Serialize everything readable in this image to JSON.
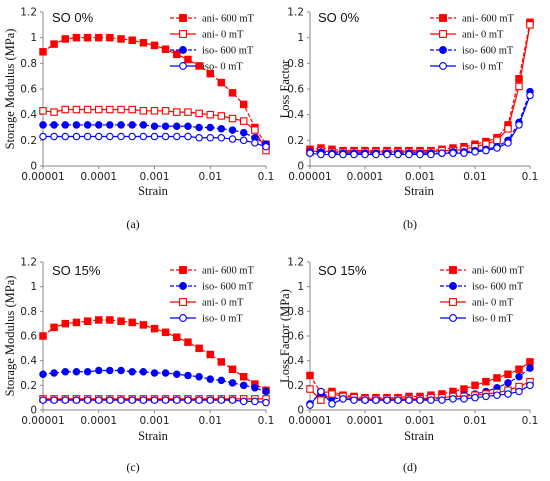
{
  "colors": {
    "red": "#ff0000",
    "blue": "#0000ff",
    "axis": "#888888"
  },
  "chart_data": [
    {
      "id": "a",
      "type": "line",
      "caption": "(a)",
      "annotation": "SO 0%",
      "xlabel": "Strain",
      "ylabel": "Storage Modulus (MPa)",
      "xscale": "log",
      "xlim": [
        1e-05,
        0.1
      ],
      "ylim": [
        0,
        1.2
      ],
      "xticks": [
        {
          "v": 1e-05,
          "label": "0.00001"
        },
        {
          "v": 0.0001,
          "label": "0.0001"
        },
        {
          "v": 0.001,
          "label": "0.001"
        },
        {
          "v": 0.01,
          "label": "0.01"
        },
        {
          "v": 0.1,
          "label": "0.1"
        }
      ],
      "yticks": [
        {
          "v": 0,
          "label": "0"
        },
        {
          "v": 0.2,
          "label": "0.2"
        },
        {
          "v": 0.4,
          "label": "0.4"
        },
        {
          "v": 0.6,
          "label": "0.6"
        },
        {
          "v": 0.8,
          "label": "0.8"
        },
        {
          "v": 1,
          "label": "1"
        },
        {
          "v": 1.2,
          "label": "1.2"
        }
      ],
      "legend_position": "top-right",
      "x": [
        1e-05,
        1.58e-05,
        2.51e-05,
        3.98e-05,
        6.31e-05,
        0.0001,
        0.000158,
        0.000251,
        0.000398,
        0.000631,
        0.001,
        0.00158,
        0.00251,
        0.00398,
        0.00631,
        0.01,
        0.0158,
        0.0251,
        0.0398,
        0.0631,
        0.1
      ],
      "series": [
        {
          "name": "ani- 600 mT",
          "color": "#ff0000",
          "marker": "square",
          "filled": true,
          "dashed": true,
          "values": [
            0.89,
            0.95,
            0.99,
            1.0,
            1.0,
            1.0,
            1.0,
            0.99,
            0.98,
            0.96,
            0.94,
            0.91,
            0.87,
            0.83,
            0.78,
            0.72,
            0.65,
            0.57,
            0.48,
            0.3,
            0.17
          ]
        },
        {
          "name": "ani- 0 mT",
          "color": "#ff0000",
          "marker": "square",
          "filled": false,
          "dashed": false,
          "values": [
            0.43,
            0.42,
            0.44,
            0.44,
            0.44,
            0.44,
            0.44,
            0.44,
            0.44,
            0.43,
            0.43,
            0.43,
            0.42,
            0.42,
            0.41,
            0.4,
            0.39,
            0.37,
            0.35,
            0.28,
            0.12
          ]
        },
        {
          "name": "iso- 600 mT",
          "color": "#0000ff",
          "marker": "circle",
          "filled": true,
          "dashed": true,
          "values": [
            0.32,
            0.32,
            0.32,
            0.32,
            0.32,
            0.32,
            0.32,
            0.32,
            0.32,
            0.32,
            0.31,
            0.31,
            0.31,
            0.31,
            0.3,
            0.3,
            0.29,
            0.28,
            0.26,
            0.22,
            0.17
          ]
        },
        {
          "name": "iso- 0 mT",
          "color": "#0000ff",
          "marker": "circle",
          "filled": false,
          "dashed": false,
          "values": [
            0.23,
            0.23,
            0.23,
            0.23,
            0.23,
            0.23,
            0.23,
            0.23,
            0.23,
            0.23,
            0.23,
            0.23,
            0.23,
            0.23,
            0.22,
            0.22,
            0.22,
            0.21,
            0.2,
            0.18,
            0.15
          ]
        }
      ]
    },
    {
      "id": "b",
      "type": "line",
      "caption": "(b)",
      "annotation": "SO 0%",
      "xlabel": "Strain",
      "ylabel": "Loss Factor",
      "xscale": "log",
      "xlim": [
        1e-05,
        0.1
      ],
      "ylim": [
        0,
        1.2
      ],
      "xticks": [
        {
          "v": 1e-05,
          "label": "0.00001"
        },
        {
          "v": 0.0001,
          "label": "0.0001"
        },
        {
          "v": 0.001,
          "label": "0.001"
        },
        {
          "v": 0.01,
          "label": "0.01"
        },
        {
          "v": 0.1,
          "label": "0.1"
        }
      ],
      "yticks": [
        {
          "v": 0,
          "label": "0"
        },
        {
          "v": 0.2,
          "label": "0.2"
        },
        {
          "v": 0.4,
          "label": "0.4"
        },
        {
          "v": 0.6,
          "label": "0.6"
        },
        {
          "v": 0.8,
          "label": "0.8"
        },
        {
          "v": 1,
          "label": "1"
        },
        {
          "v": 1.2,
          "label": "1.2"
        }
      ],
      "legend_position": "top-right",
      "x": [
        1e-05,
        1.58e-05,
        2.51e-05,
        3.98e-05,
        6.31e-05,
        0.0001,
        0.000158,
        0.000251,
        0.000398,
        0.000631,
        0.001,
        0.00158,
        0.00251,
        0.00398,
        0.00631,
        0.01,
        0.0158,
        0.0251,
        0.0398,
        0.0631,
        0.1
      ],
      "series": [
        {
          "name": "ani- 600 mT",
          "color": "#ff0000",
          "marker": "square",
          "filled": true,
          "dashed": true,
          "values": [
            0.13,
            0.14,
            0.13,
            0.12,
            0.12,
            0.12,
            0.12,
            0.12,
            0.12,
            0.12,
            0.12,
            0.12,
            0.13,
            0.14,
            0.15,
            0.17,
            0.19,
            0.22,
            0.32,
            0.68,
            1.12
          ]
        },
        {
          "name": "ani- 0 mT",
          "color": "#ff0000",
          "marker": "square",
          "filled": false,
          "dashed": false,
          "values": [
            0.11,
            0.12,
            0.11,
            0.11,
            0.11,
            0.11,
            0.11,
            0.11,
            0.11,
            0.11,
            0.11,
            0.11,
            0.12,
            0.12,
            0.13,
            0.15,
            0.17,
            0.2,
            0.29,
            0.62,
            1.1
          ]
        },
        {
          "name": "iso- 600 mT",
          "color": "#0000ff",
          "marker": "circle",
          "filled": true,
          "dashed": true,
          "values": [
            0.11,
            0.11,
            0.1,
            0.1,
            0.1,
            0.1,
            0.1,
            0.1,
            0.1,
            0.1,
            0.1,
            0.1,
            0.1,
            0.11,
            0.11,
            0.12,
            0.13,
            0.15,
            0.2,
            0.34,
            0.58
          ]
        },
        {
          "name": "iso- 0 mT",
          "color": "#0000ff",
          "marker": "circle",
          "filled": false,
          "dashed": false,
          "values": [
            0.1,
            0.09,
            0.09,
            0.09,
            0.09,
            0.09,
            0.09,
            0.09,
            0.09,
            0.09,
            0.09,
            0.09,
            0.1,
            0.1,
            0.1,
            0.11,
            0.12,
            0.14,
            0.18,
            0.32,
            0.55
          ]
        }
      ]
    },
    {
      "id": "c",
      "type": "line",
      "caption": "(c)",
      "annotation": "SO 15%",
      "xlabel": "Strain",
      "ylabel": "Storage Modulus (MPa)",
      "xscale": "log",
      "xlim": [
        1e-05,
        0.1
      ],
      "ylim": [
        0,
        1.2
      ],
      "xticks": [
        {
          "v": 1e-05,
          "label": "0.00001"
        },
        {
          "v": 0.0001,
          "label": "0.0001"
        },
        {
          "v": 0.001,
          "label": "0.001"
        },
        {
          "v": 0.01,
          "label": "0.01"
        },
        {
          "v": 0.1,
          "label": "0.1"
        }
      ],
      "yticks": [
        {
          "v": 0,
          "label": "0"
        },
        {
          "v": 0.2,
          "label": "0.2"
        },
        {
          "v": 0.4,
          "label": "0.4"
        },
        {
          "v": 0.6,
          "label": "0.6"
        },
        {
          "v": 0.8,
          "label": "0.8"
        },
        {
          "v": 1,
          "label": "1"
        },
        {
          "v": 1.2,
          "label": "1.2"
        }
      ],
      "legend_position": "top-right",
      "x": [
        1e-05,
        1.58e-05,
        2.51e-05,
        3.98e-05,
        6.31e-05,
        0.0001,
        0.000158,
        0.000251,
        0.000398,
        0.000631,
        0.001,
        0.00158,
        0.00251,
        0.00398,
        0.00631,
        0.01,
        0.0158,
        0.0251,
        0.0398,
        0.0631,
        0.1
      ],
      "series": [
        {
          "name": "ani- 600 mT",
          "color": "#ff0000",
          "marker": "square",
          "filled": true,
          "dashed": true,
          "values": [
            0.6,
            0.67,
            0.7,
            0.71,
            0.72,
            0.73,
            0.73,
            0.72,
            0.71,
            0.69,
            0.66,
            0.63,
            0.59,
            0.55,
            0.5,
            0.45,
            0.39,
            0.33,
            0.27,
            0.21,
            0.16
          ]
        },
        {
          "name": "iso- 600 mT",
          "color": "#0000ff",
          "marker": "circle",
          "filled": true,
          "dashed": true,
          "values": [
            0.29,
            0.3,
            0.31,
            0.31,
            0.31,
            0.32,
            0.32,
            0.32,
            0.31,
            0.31,
            0.3,
            0.3,
            0.29,
            0.28,
            0.27,
            0.25,
            0.24,
            0.22,
            0.2,
            0.18,
            0.15
          ]
        },
        {
          "name": "ani- 0 mT",
          "color": "#ff0000",
          "marker": "square",
          "filled": false,
          "dashed": false,
          "values": [
            0.09,
            0.09,
            0.09,
            0.09,
            0.09,
            0.09,
            0.09,
            0.09,
            0.09,
            0.09,
            0.09,
            0.09,
            0.09,
            0.09,
            0.09,
            0.09,
            0.09,
            0.09,
            0.09,
            0.09,
            0.09
          ]
        },
        {
          "name": "iso- 0 mT",
          "color": "#0000ff",
          "marker": "circle",
          "filled": false,
          "dashed": false,
          "values": [
            0.08,
            0.08,
            0.08,
            0.08,
            0.08,
            0.08,
            0.08,
            0.08,
            0.08,
            0.08,
            0.08,
            0.08,
            0.08,
            0.08,
            0.08,
            0.08,
            0.08,
            0.08,
            0.07,
            0.07,
            0.06
          ]
        }
      ]
    },
    {
      "id": "d",
      "type": "line",
      "caption": "(d)",
      "annotation": "SO 15%",
      "xlabel": "Strain",
      "ylabel": "Loss Factor (MPa)",
      "xscale": "log",
      "xlim": [
        1e-05,
        0.1
      ],
      "ylim": [
        0,
        1.2
      ],
      "xticks": [
        {
          "v": 1e-05,
          "label": "0.00001"
        },
        {
          "v": 0.0001,
          "label": "0.0001"
        },
        {
          "v": 0.001,
          "label": "0.001"
        },
        {
          "v": 0.01,
          "label": "0.01"
        },
        {
          "v": 0.1,
          "label": "0.1"
        }
      ],
      "yticks": [
        {
          "v": 0,
          "label": "0"
        },
        {
          "v": 0.2,
          "label": "0.2"
        },
        {
          "v": 0.4,
          "label": "0.4"
        },
        {
          "v": 0.6,
          "label": "0.6"
        },
        {
          "v": 0.8,
          "label": "0.8"
        },
        {
          "v": 1,
          "label": "1"
        },
        {
          "v": 1.2,
          "label": "1.2"
        }
      ],
      "legend_position": "top-right",
      "x": [
        1e-05,
        1.58e-05,
        2.51e-05,
        3.98e-05,
        6.31e-05,
        0.0001,
        0.000158,
        0.000251,
        0.000398,
        0.000631,
        0.001,
        0.00158,
        0.00251,
        0.00398,
        0.00631,
        0.01,
        0.0158,
        0.0251,
        0.0398,
        0.0631,
        0.1
      ],
      "series": [
        {
          "name": "ani- 600 mT",
          "color": "#ff0000",
          "marker": "square",
          "filled": true,
          "dashed": true,
          "values": [
            0.28,
            0.14,
            0.15,
            0.12,
            0.11,
            0.1,
            0.1,
            0.1,
            0.1,
            0.11,
            0.11,
            0.12,
            0.13,
            0.15,
            0.17,
            0.2,
            0.23,
            0.26,
            0.29,
            0.33,
            0.39
          ]
        },
        {
          "name": "iso- 600 mT",
          "color": "#0000ff",
          "marker": "circle",
          "filled": true,
          "dashed": true,
          "values": [
            0.05,
            0.14,
            0.1,
            0.09,
            0.09,
            0.08,
            0.08,
            0.08,
            0.08,
            0.08,
            0.09,
            0.09,
            0.1,
            0.11,
            0.12,
            0.13,
            0.15,
            0.18,
            0.22,
            0.27,
            0.34
          ]
        },
        {
          "name": "ani- 0 mT",
          "color": "#ff0000",
          "marker": "square",
          "filled": false,
          "dashed": false,
          "values": [
            0.17,
            0.08,
            0.13,
            0.11,
            0.1,
            0.09,
            0.09,
            0.09,
            0.09,
            0.09,
            0.09,
            0.1,
            0.1,
            0.11,
            0.11,
            0.12,
            0.13,
            0.14,
            0.16,
            0.19,
            0.23
          ]
        },
        {
          "name": "iso- 0 mT",
          "color": "#0000ff",
          "marker": "circle",
          "filled": false,
          "dashed": false,
          "values": [
            0.04,
            0.15,
            0.05,
            0.09,
            0.08,
            0.08,
            0.08,
            0.08,
            0.08,
            0.08,
            0.08,
            0.08,
            0.08,
            0.09,
            0.09,
            0.1,
            0.11,
            0.12,
            0.13,
            0.15,
            0.2
          ]
        }
      ]
    }
  ]
}
